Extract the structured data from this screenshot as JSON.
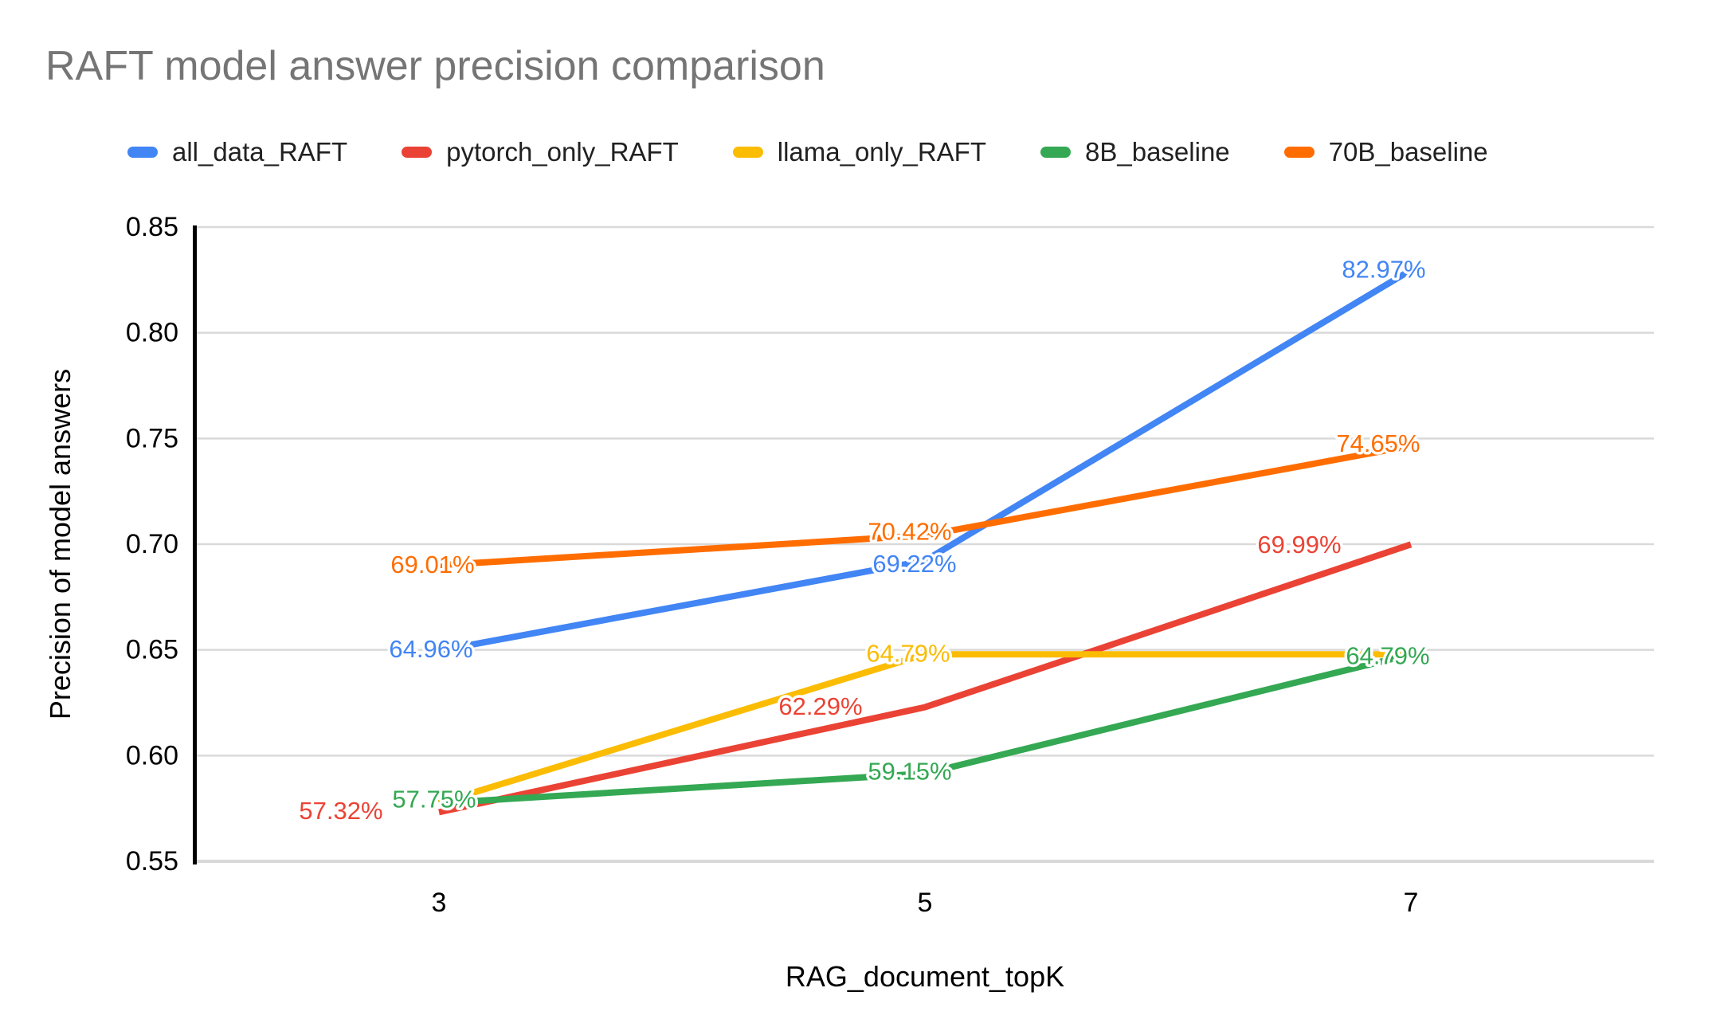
{
  "title": {
    "text": "RAFT model answer precision comparison",
    "color": "#757575"
  },
  "chart_data": {
    "type": "line",
    "title": "RAFT model answer precision comparison",
    "x": [
      3,
      5,
      7
    ],
    "x_axis": {
      "title": "RAG_document_topK",
      "tick_labels": [
        "3",
        "5",
        "7"
      ]
    },
    "y_axis": {
      "title": "Precision of model answers",
      "min": 0.55,
      "max": 0.85,
      "tick_step": 0.05,
      "tick_labels": [
        "0.85",
        "0.80",
        "0.75",
        "0.70",
        "0.65",
        "0.60",
        "0.55"
      ]
    },
    "grid": true,
    "legend_position": "top",
    "value_format": "percent",
    "series": [
      {
        "name": "all_data_RAFT",
        "color": "#4285F4",
        "values_pct": [
          64.96,
          69.22,
          82.97
        ],
        "labels": [
          "64.96%",
          "69.22%",
          "82.97%"
        ],
        "label_visible": [
          true,
          true,
          true
        ]
      },
      {
        "name": "pytorch_only_RAFT",
        "color": "#EA4335",
        "values_pct": [
          57.32,
          62.29,
          69.99
        ],
        "labels": [
          "57.32%",
          "62.29%",
          "69.99%"
        ],
        "label_visible": [
          true,
          true,
          true
        ]
      },
      {
        "name": "llama_only_RAFT",
        "color": "#FBBC04",
        "values_pct": [
          57.75,
          64.79,
          64.79
        ],
        "labels": [
          "57.75%",
          "64.79%",
          "64.79%"
        ],
        "label_visible": [
          false,
          true,
          false
        ]
      },
      {
        "name": "8B_baseline",
        "color": "#34A853",
        "values_pct": [
          57.75,
          59.15,
          64.79
        ],
        "labels": [
          "57.75%",
          "59.15%",
          "64.79%"
        ],
        "label_visible": [
          true,
          true,
          true
        ]
      },
      {
        "name": "70B_baseline",
        "color": "#FF6D01",
        "values_pct": [
          69.01,
          70.42,
          74.65
        ],
        "labels": [
          "69.01%",
          "70.42%",
          "74.65%"
        ],
        "label_visible": [
          true,
          true,
          true
        ]
      }
    ],
    "colors": {
      "grid": "#d9d9d9",
      "axis_line": "#000000",
      "tick_text": "#000000",
      "title_text": "#757575"
    }
  }
}
